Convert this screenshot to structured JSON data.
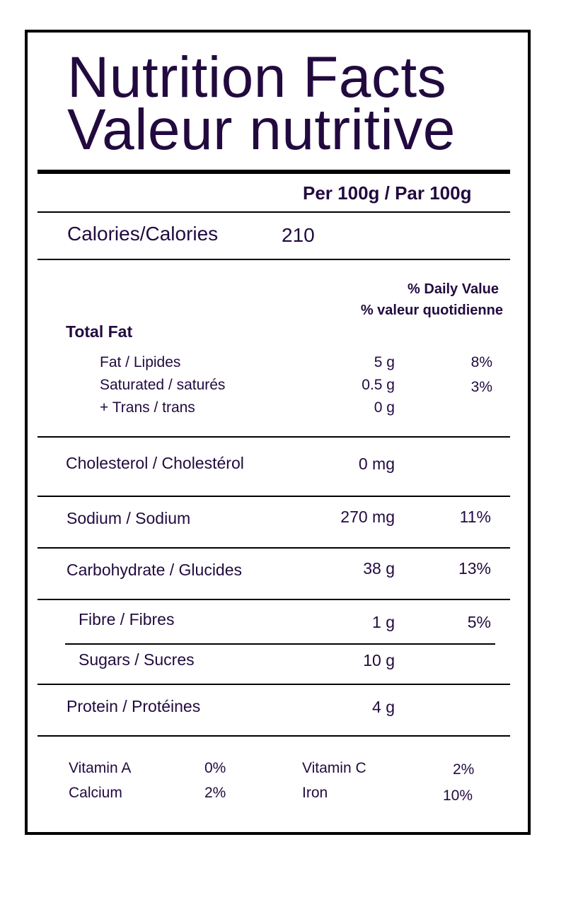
{
  "title_en": "Nutrition Facts",
  "title_fr": "Valeur nutritive",
  "serving": "Per 100g / Par 100g",
  "calories": {
    "label": "Calories/Calories",
    "value": "210"
  },
  "daily_value_en": "% Daily Value",
  "daily_value_fr": "% valeur quotidienne",
  "total_fat_heading": "Total Fat",
  "fat": {
    "label": "Fat / Lipides",
    "amount": "5 g",
    "dv": "8%"
  },
  "saturated": {
    "label": "Saturated / saturés",
    "amount": "0.5 g",
    "dv": "3%"
  },
  "trans": {
    "label": "+ Trans / trans",
    "amount": "0 g",
    "dv": ""
  },
  "cholesterol": {
    "label": "Cholesterol / Cholestérol",
    "amount": "0 mg",
    "dv": ""
  },
  "sodium": {
    "label": "Sodium / Sodium",
    "amount": "270 mg",
    "dv": "11%"
  },
  "carbohydrate": {
    "label": "Carbohydrate / Glucides",
    "amount": "38 g",
    "dv": "13%"
  },
  "fibre": {
    "label": "Fibre / Fibres",
    "amount": "1 g",
    "dv": "5%"
  },
  "sugars": {
    "label": "Sugars / Sucres",
    "amount": "10 g",
    "dv": ""
  },
  "protein": {
    "label": "Protein / Protéines",
    "amount": "4 g",
    "dv": ""
  },
  "vitamins": {
    "vitamin_a": {
      "label": "Vitamin A",
      "value": "0%"
    },
    "calcium": {
      "label": "Calcium",
      "value": "2%"
    },
    "vitamin_c": {
      "label": "Vitamin C",
      "value": "2%"
    },
    "iron": {
      "label": "Iron",
      "value": "10%"
    }
  },
  "colors": {
    "text": "#220a3f",
    "rules": "#000000",
    "background": "#ffffff"
  }
}
